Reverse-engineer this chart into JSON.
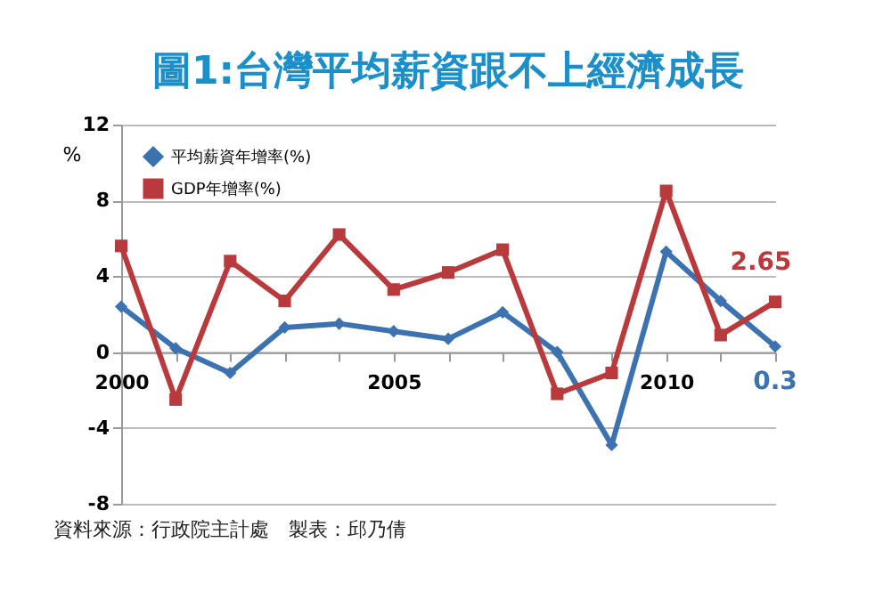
{
  "chart_data": {
    "type": "line",
    "title": "圖1:台灣平均薪資跟不上經濟成長",
    "ylabel": "%",
    "x": [
      2000,
      2001,
      2002,
      2003,
      2004,
      2005,
      2006,
      2007,
      2008,
      2009,
      2010,
      2011,
      2012
    ],
    "series": [
      {
        "name": "平均薪資年增率(%)",
        "color": "#3d72b0",
        "marker": "diamond",
        "values": [
          2.4,
          0.2,
          -1.1,
          1.3,
          1.5,
          1.1,
          0.7,
          2.1,
          0.0,
          -4.9,
          5.3,
          2.7,
          0.3
        ],
        "value_labels": [
          null,
          null,
          null,
          null,
          null,
          null,
          null,
          null,
          null,
          null,
          null,
          null,
          "0.3"
        ]
      },
      {
        "name": "GDP年增率(%)",
        "color": "#b83a3d",
        "marker": "square",
        "values": [
          5.6,
          -2.5,
          4.8,
          2.7,
          6.2,
          3.3,
          4.2,
          5.4,
          -2.2,
          -1.1,
          8.5,
          0.9,
          2.65
        ],
        "value_labels": [
          null,
          null,
          null,
          null,
          null,
          null,
          null,
          null,
          null,
          null,
          null,
          null,
          "2.65"
        ]
      }
    ],
    "xlim": [
      2000,
      2012
    ],
    "xticks": [
      2000,
      {
        "value": 2001,
        "label": null
      },
      {
        "value": 2002,
        "label": null
      },
      {
        "value": 2003,
        "label": null
      },
      {
        "value": 2004,
        "label": null
      },
      2005,
      {
        "value": 2006,
        "label": null
      },
      {
        "value": 2007,
        "label": null
      },
      {
        "value": 2008,
        "label": null
      },
      {
        "value": 2009,
        "label": null
      },
      2010,
      {
        "value": 2011,
        "label": null
      },
      {
        "value": 2012,
        "label": null
      }
    ],
    "ylim": [
      -8,
      12
    ],
    "yticks": [
      -8,
      -4,
      0,
      4,
      8,
      12
    ],
    "grid": "y",
    "legend": "top left",
    "line_style": "solid",
    "annotations": [
      "資料來源：行政院主計處　製表：邱乃倩"
    ]
  }
}
